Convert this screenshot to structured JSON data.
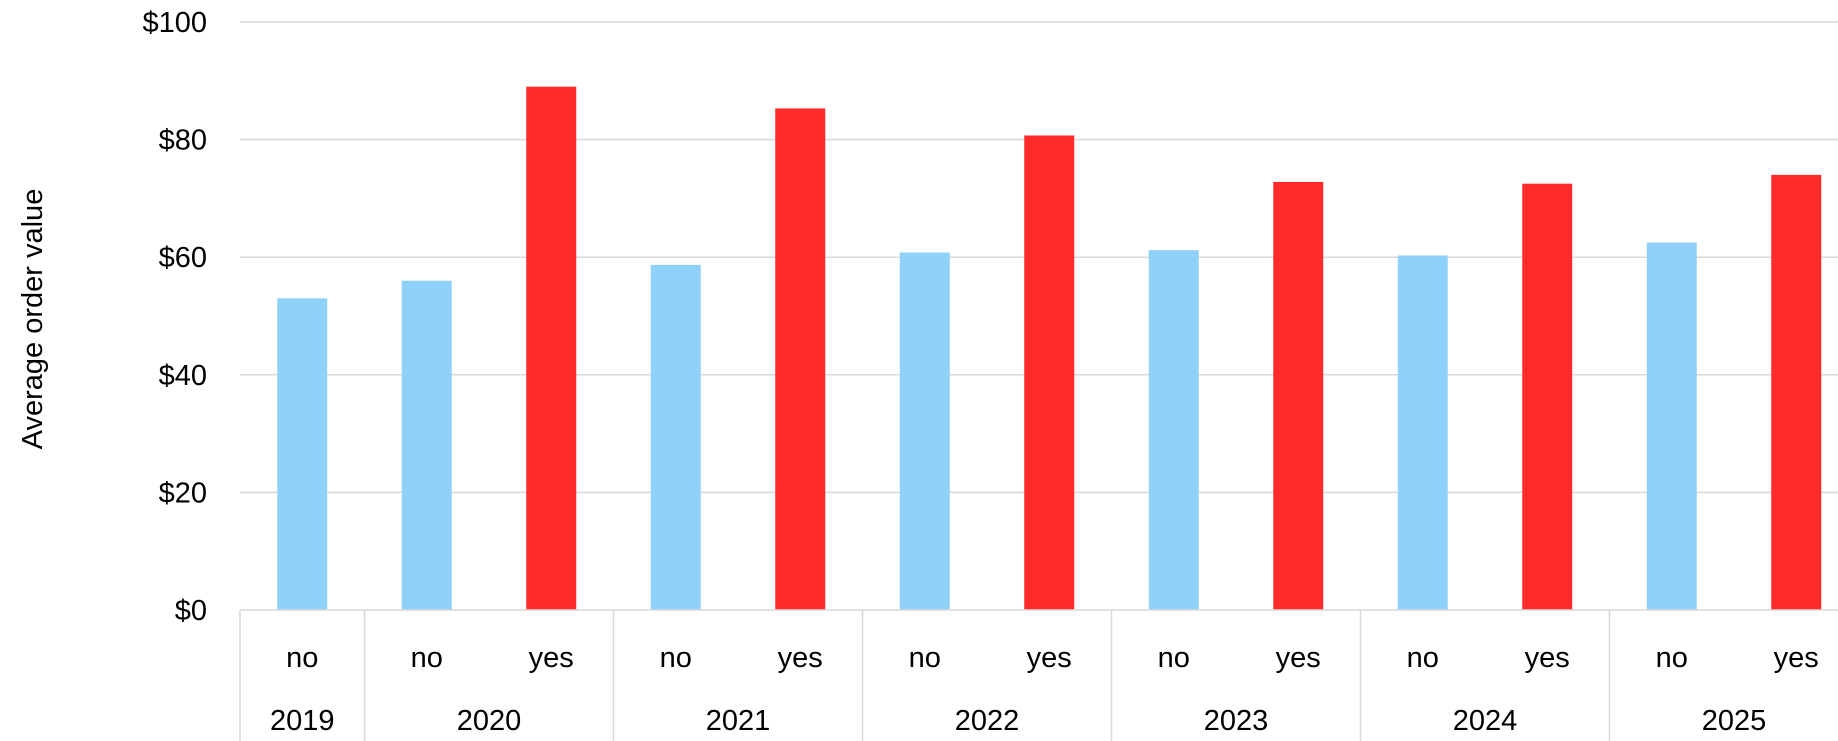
{
  "chart_data": {
    "type": "bar",
    "ylabel": "Average order value",
    "ylim": [
      0,
      100
    ],
    "yticks": [
      0,
      20,
      40,
      60,
      80,
      100
    ],
    "ytick_labels": [
      "$0",
      "$20",
      "$40",
      "$60",
      "$80",
      "$100"
    ],
    "grid": true,
    "groups": [
      {
        "label": "2019",
        "bars": [
          {
            "category": "no",
            "value": 53
          }
        ]
      },
      {
        "label": "2020",
        "bars": [
          {
            "category": "no",
            "value": 56
          },
          {
            "category": "yes",
            "value": 89
          }
        ]
      },
      {
        "label": "2021",
        "bars": [
          {
            "category": "no",
            "value": 58.7
          },
          {
            "category": "yes",
            "value": 85.3
          }
        ]
      },
      {
        "label": "2022",
        "bars": [
          {
            "category": "no",
            "value": 60.8
          },
          {
            "category": "yes",
            "value": 80.7
          }
        ]
      },
      {
        "label": "2023",
        "bars": [
          {
            "category": "no",
            "value": 61.2
          },
          {
            "category": "yes",
            "value": 72.8
          }
        ]
      },
      {
        "label": "2024",
        "bars": [
          {
            "category": "no",
            "value": 60.3
          },
          {
            "category": "yes",
            "value": 72.5
          }
        ]
      },
      {
        "label": "2025",
        "bars": [
          {
            "category": "no",
            "value": 62.5
          },
          {
            "category": "yes",
            "value": 74
          }
        ]
      }
    ],
    "colors": {
      "no": "#8fd1f8",
      "yes": "#ff2a2a",
      "grid": "#d9d9d9",
      "axis": "#d9d9d9"
    }
  }
}
